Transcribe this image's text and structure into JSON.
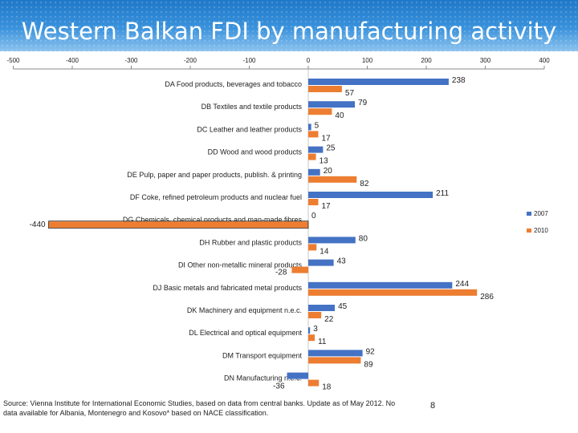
{
  "title": "Western Balkan FDI by manufacturing activity",
  "source": "Source: Vienna Institute for International Economic Studies, based on data from central banks. Update as of May 2012. No data available for Albania, Montenegro and Kosovo* based on NACE classification.",
  "page_number": "8",
  "colors": {
    "series_2007": "#4472c4",
    "series_2010": "#ed7d31",
    "header": "#2a84d2"
  },
  "chart_data": {
    "type": "bar",
    "orientation": "horizontal",
    "title": "Western Balkan FDI by manufacturing activity",
    "xlim": [
      -500,
      400
    ],
    "x_ticks": [
      "-500",
      "-400",
      "-300",
      "-200",
      "-100",
      "0",
      "100",
      "200",
      "300",
      "400"
    ],
    "x_tick_values": [
      -500,
      -400,
      -300,
      -200,
      -100,
      0,
      100,
      200,
      300,
      400
    ],
    "legend_position": "right",
    "categories": [
      "DA  Food products, beverages and tobacco",
      "DB  Textiles and textile products",
      "DC  Leather and leather products",
      "DD  Wood and wood products",
      "DE  Pulp, paper and paper products, publish. & printing",
      "DF  Coke, refined petroleum products and nuclear fuel",
      "DG  Chemicals, chemical products and man-made fibres",
      "DH  Rubber and plastic products",
      "DI  Other non-metallic mineral products",
      "DJ  Basic metals and fabricated metal products",
      "DK  Machinery and equipment n.e.c.",
      "DL  Electrical and optical equipment",
      "DM  Transport equipment",
      "DN  Manufacturing n.e.c."
    ],
    "series": [
      {
        "name": "2007",
        "values": [
          238,
          79,
          5,
          25,
          20,
          211,
          0,
          80,
          43,
          244,
          45,
          3,
          92,
          -36
        ],
        "labels": [
          "238",
          "79",
          "5",
          "25",
          "20",
          "211",
          "0",
          "80",
          "43",
          "244",
          "45",
          "3",
          "92",
          "-36"
        ]
      },
      {
        "name": "2010",
        "values": [
          57,
          40,
          17,
          13,
          82,
          17,
          -440,
          14,
          -28,
          286,
          22,
          11,
          89,
          18
        ],
        "labels": [
          "57",
          "40",
          "17",
          "13",
          "82",
          "17",
          "-440",
          "14",
          "-28",
          "286",
          "22",
          "11",
          "89",
          "18"
        ]
      }
    ]
  }
}
